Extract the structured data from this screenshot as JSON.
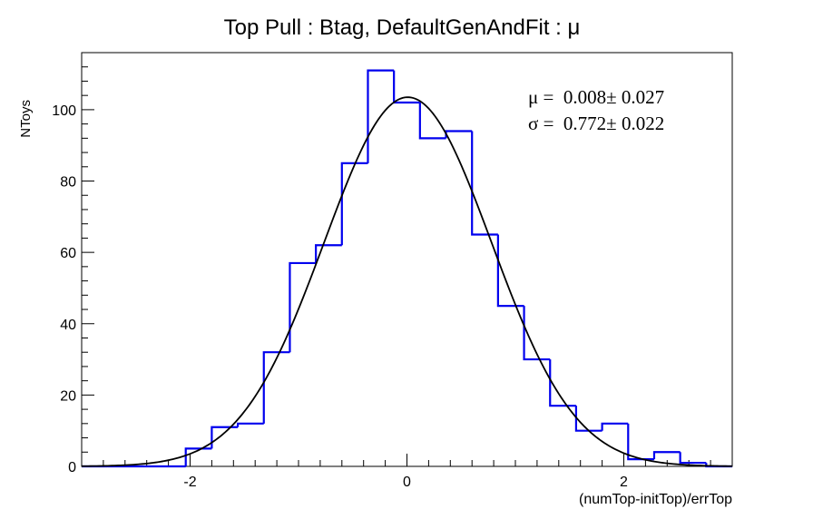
{
  "chart_data": {
    "type": "bar",
    "title": "Top Pull : Btag, DefaultGenAndFit : μ",
    "xlabel": "(numTop-initTop)/errTop",
    "ylabel": "NToys",
    "xlim": [
      -3,
      3
    ],
    "ylim": [
      0,
      116
    ],
    "x_ticks": [
      -2,
      0,
      2
    ],
    "y_ticks": [
      0,
      20,
      40,
      60,
      80,
      100
    ],
    "bin_edges": [
      -3.0,
      -2.76,
      -2.52,
      -2.28,
      -2.04,
      -1.8,
      -1.56,
      -1.32,
      -1.08,
      -0.84,
      -0.6,
      -0.36,
      -0.12,
      0.12,
      0.36,
      0.6,
      0.84,
      1.08,
      1.32,
      1.56,
      1.8,
      2.04,
      2.28,
      2.52,
      2.76,
      3.0
    ],
    "values": [
      0,
      0,
      0,
      0,
      5,
      11,
      12,
      32,
      57,
      62,
      85,
      111,
      102,
      92,
      94,
      65,
      45,
      30,
      17,
      10,
      12,
      2,
      4,
      1,
      0
    ],
    "fit": {
      "function": "gaussian",
      "amplitude": 103.5,
      "mean": 0.008,
      "sigma": 0.772
    },
    "stats": {
      "mu_line": "μ =  0.008± 0.027",
      "sigma_line": "σ =  0.772± 0.022"
    },
    "colors": {
      "histogram": "#0000ee",
      "fit": "#000000",
      "axes": "#000000"
    },
    "grid": false
  }
}
